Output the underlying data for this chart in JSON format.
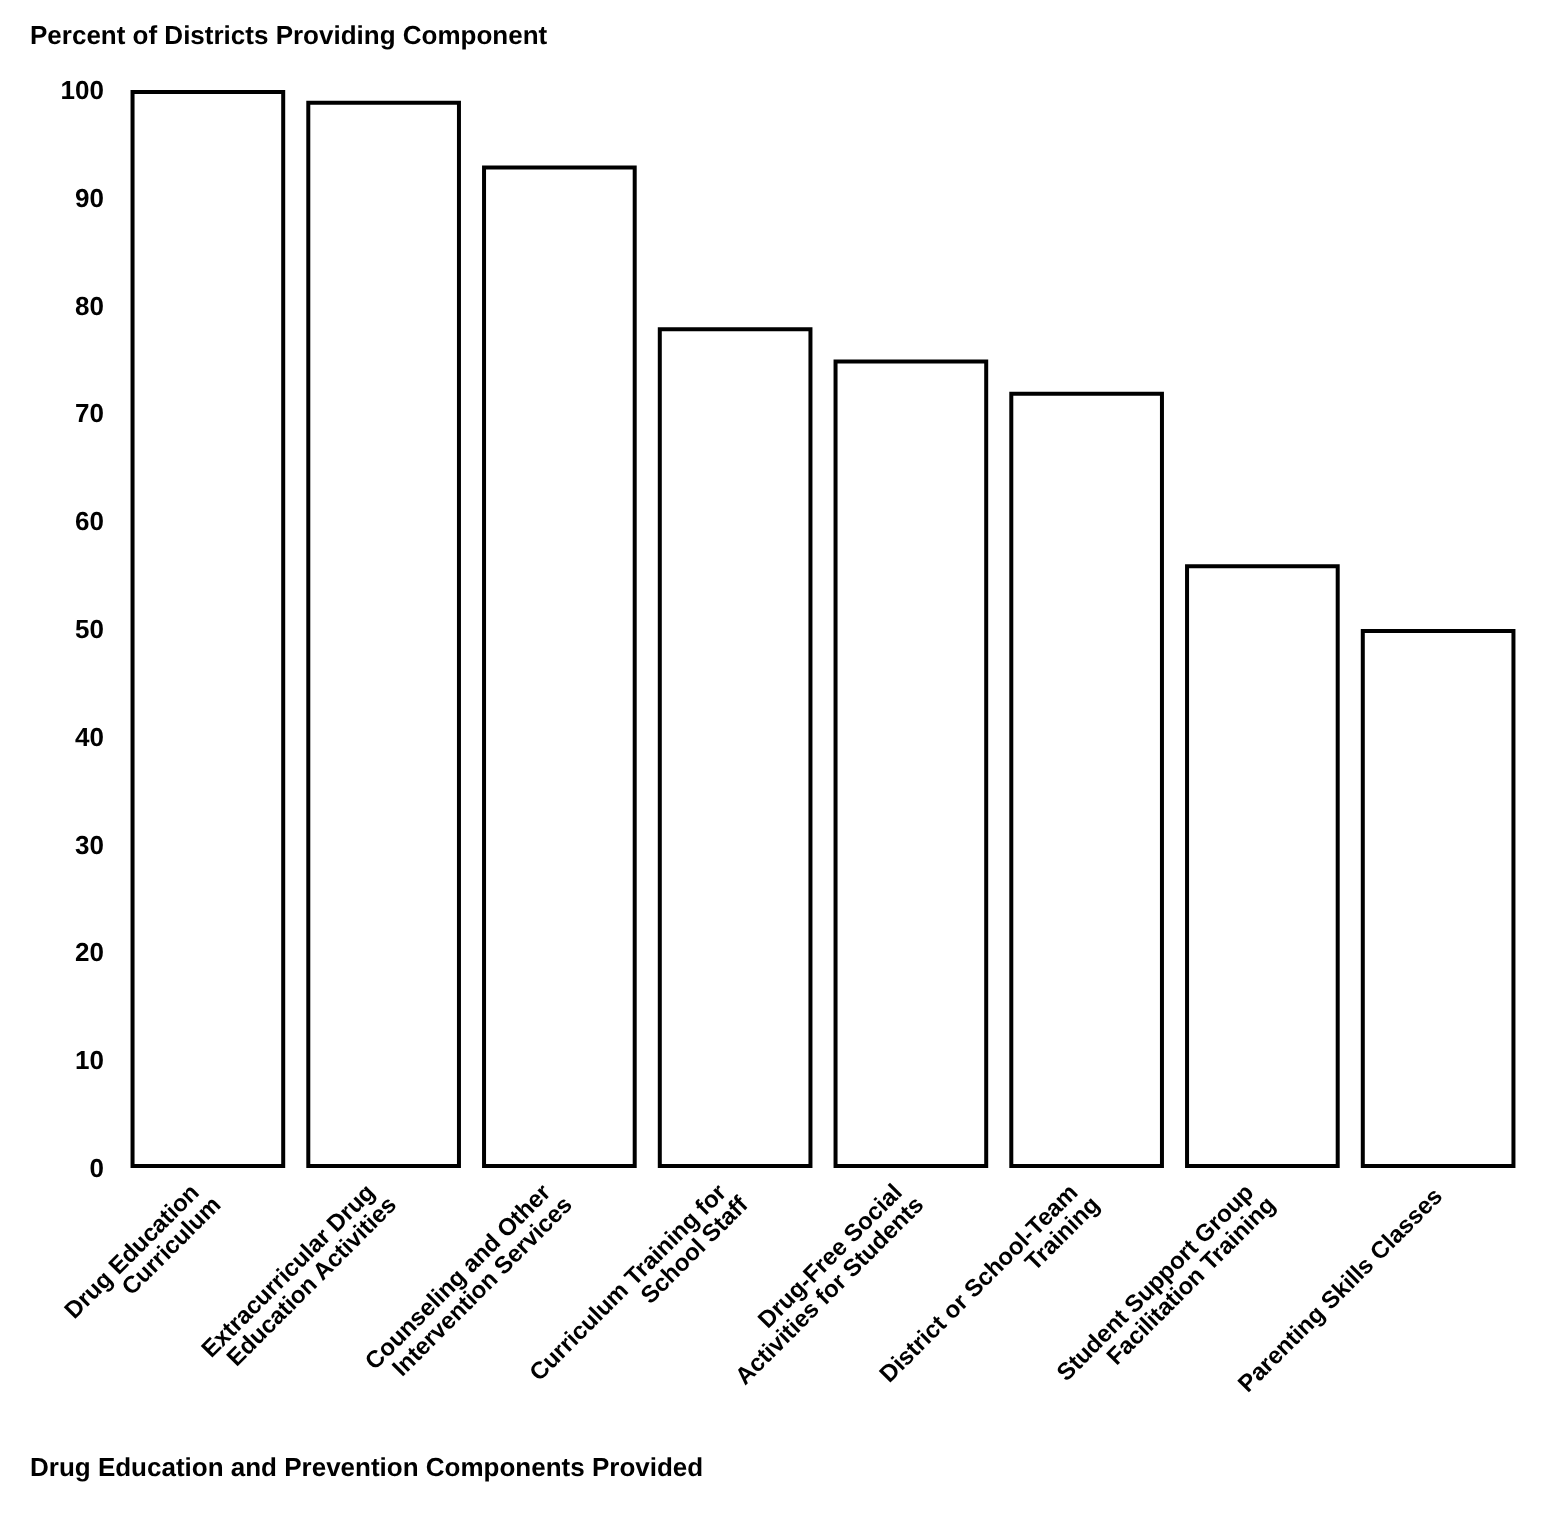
{
  "chart_data": {
    "type": "bar",
    "ylabel": "Percent of Districts Providing Component",
    "xlabel": "Drug Education and Prevention Components Provided",
    "categories": [
      "Drug Education Curriculum",
      "Extracurricular Drug Education Activities",
      "Counseling and Other Intervention Services",
      "Curriculum Training for School Staff",
      "Drug-Free Social Activities for Students",
      "District or School-Team Training",
      "Student Support Group Facilitation Training",
      "Parenting Skills Classes"
    ],
    "values": [
      100,
      99,
      93,
      78,
      75,
      72,
      56,
      50
    ],
    "color": "#ffffff",
    "ylim": [
      0,
      100
    ],
    "yticks": [
      0,
      10,
      20,
      30,
      40,
      50,
      60,
      70,
      80,
      90,
      100
    ],
    "grid": false
  }
}
